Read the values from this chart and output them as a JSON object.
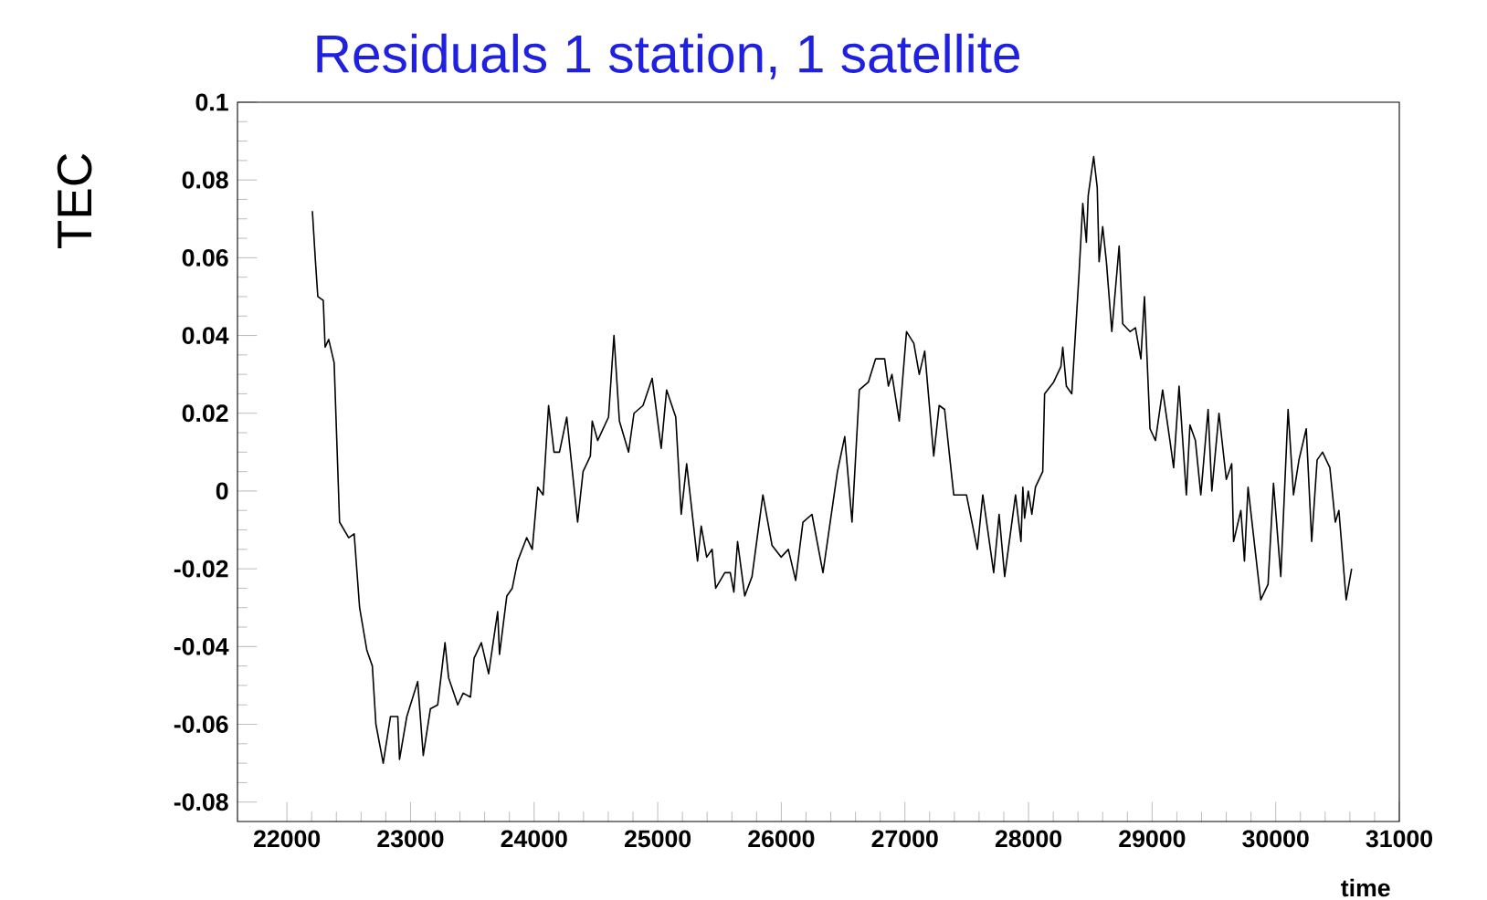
{
  "chart_data": {
    "type": "line",
    "title": "Residuals 1 station, 1 satellite",
    "xlabel": "time",
    "ylabel": "TEC",
    "xlim": [
      21600,
      31000
    ],
    "ylim": [
      -0.085,
      0.1
    ],
    "xticks": [
      22000,
      23000,
      24000,
      25000,
      26000,
      27000,
      28000,
      29000,
      30000,
      31000
    ],
    "yticks": [
      -0.08,
      -0.06,
      -0.04,
      -0.02,
      0,
      0.02,
      0.04,
      0.06,
      0.08,
      0.1
    ],
    "marker": "none",
    "line_style": "solid",
    "series": [
      {
        "color": "#000000",
        "x": [
          22206,
          22231,
          22250,
          22294,
          22309,
          22338,
          22382,
          22426,
          22500,
          22544,
          22588,
          22647,
          22691,
          22720,
          22779,
          22838,
          22897,
          22911,
          22970,
          23058,
          23103,
          23161,
          23220,
          23279,
          23308,
          23382,
          23426,
          23485,
          23514,
          23573,
          23632,
          23705,
          23720,
          23779,
          23823,
          23867,
          23940,
          23985,
          24029,
          24073,
          24117,
          24161,
          24205,
          24264,
          24352,
          24396,
          24455,
          24470,
          24514,
          24602,
          24646,
          24690,
          24764,
          24808,
          24881,
          24955,
          25028,
          25072,
          25146,
          25190,
          25234,
          25322,
          25352,
          25396,
          25440,
          25469,
          25543,
          25587,
          25616,
          25646,
          25704,
          25763,
          25851,
          25925,
          25998,
          26057,
          26116,
          26175,
          26248,
          26337,
          26454,
          26513,
          26572,
          26631,
          26704,
          26763,
          26836,
          26866,
          26895,
          26954,
          27013,
          27072,
          27116,
          27160,
          27233,
          27277,
          27321,
          27395,
          27498,
          27586,
          27630,
          27718,
          27762,
          27807,
          27895,
          27939,
          27954,
          27968,
          27998,
          28027,
          28056,
          28115,
          28130,
          28203,
          28262,
          28277,
          28306,
          28350,
          28409,
          28439,
          28468,
          28483,
          28527,
          28556,
          28571,
          28600,
          28630,
          28674,
          28733,
          28762,
          28821,
          28865,
          28909,
          28938,
          28983,
          29027,
          29085,
          29144,
          29174,
          29218,
          29277,
          29306,
          29350,
          29394,
          29453,
          29483,
          29541,
          29600,
          29644,
          29659,
          29718,
          29747,
          29776,
          29879,
          29938,
          29982,
          30041,
          30100,
          30144,
          30188,
          30247,
          30291,
          30335,
          30379,
          30438,
          30482,
          30511,
          30570,
          30614
        ],
        "values": [
          0.072,
          0.059,
          0.05,
          0.049,
          0.037,
          0.039,
          0.033,
          -0.008,
          -0.012,
          -0.011,
          -0.03,
          -0.041,
          -0.045,
          -0.06,
          -0.07,
          -0.058,
          -0.058,
          -0.069,
          -0.058,
          -0.049,
          -0.068,
          -0.056,
          -0.055,
          -0.039,
          -0.048,
          -0.055,
          -0.052,
          -0.053,
          -0.043,
          -0.039,
          -0.047,
          -0.031,
          -0.042,
          -0.027,
          -0.025,
          -0.018,
          -0.012,
          -0.015,
          0.001,
          -0.001,
          0.022,
          0.01,
          0.01,
          0.019,
          -0.008,
          0.005,
          0.009,
          0.018,
          0.013,
          0.019,
          0.04,
          0.018,
          0.01,
          0.02,
          0.022,
          0.029,
          0.011,
          0.026,
          0.019,
          -0.006,
          0.007,
          -0.018,
          -0.009,
          -0.017,
          -0.015,
          -0.025,
          -0.021,
          -0.021,
          -0.026,
          -0.013,
          -0.027,
          -0.022,
          -0.001,
          -0.014,
          -0.017,
          -0.015,
          -0.023,
          -0.008,
          -0.006,
          -0.021,
          0.005,
          0.014,
          -0.008,
          0.026,
          0.028,
          0.034,
          0.034,
          0.027,
          0.03,
          0.018,
          0.041,
          0.038,
          0.03,
          0.036,
          0.009,
          0.022,
          0.021,
          -0.001,
          -0.001,
          -0.015,
          -0.001,
          -0.021,
          -0.006,
          -0.022,
          -0.001,
          -0.013,
          0.001,
          -0.007,
          0.0,
          -0.006,
          0.001,
          0.005,
          0.025,
          0.028,
          0.032,
          0.037,
          0.027,
          0.025,
          0.056,
          0.074,
          0.064,
          0.076,
          0.086,
          0.078,
          0.059,
          0.068,
          0.059,
          0.041,
          0.063,
          0.043,
          0.041,
          0.042,
          0.034,
          0.05,
          0.016,
          0.013,
          0.026,
          0.013,
          0.006,
          0.027,
          -0.001,
          0.017,
          0.013,
          -0.001,
          0.021,
          0.0,
          0.02,
          0.003,
          0.007,
          -0.013,
          -0.005,
          -0.018,
          0.001,
          -0.028,
          -0.024,
          0.002,
          -0.022,
          0.021,
          -0.001,
          0.008,
          0.016,
          -0.013,
          0.008,
          0.01,
          0.006,
          -0.008,
          -0.005,
          -0.028,
          -0.02
        ]
      }
    ]
  }
}
